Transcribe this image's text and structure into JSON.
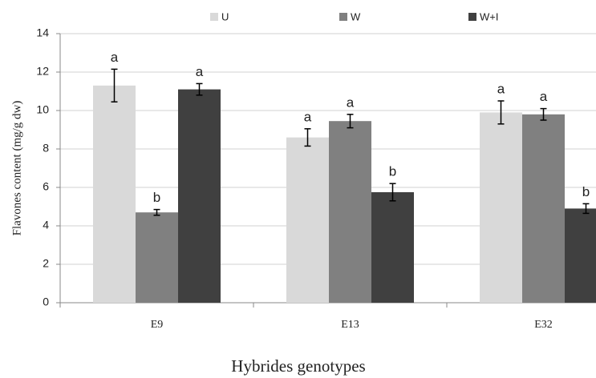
{
  "chart_data": {
    "type": "bar",
    "y_label": "Flavones content (mg/g dw)",
    "x_label": "Hybrides genotypes",
    "categories": [
      "E9",
      "E13",
      "E32"
    ],
    "series": [
      {
        "name": "U",
        "color": "#d9d9d9",
        "values": [
          11.3,
          8.6,
          9.9
        ],
        "errors": [
          0.85,
          0.45,
          0.6
        ],
        "letters": [
          "a",
          "a",
          "a"
        ]
      },
      {
        "name": "W",
        "color": "#808080",
        "values": [
          4.7,
          9.45,
          9.8
        ],
        "errors": [
          0.15,
          0.35,
          0.3
        ],
        "letters": [
          "b",
          "a",
          "a"
        ]
      },
      {
        "name": "W+I",
        "color": "#404040",
        "values": [
          11.1,
          5.75,
          4.9
        ],
        "errors": [
          0.3,
          0.45,
          0.25
        ],
        "letters": [
          "a",
          "b",
          "b"
        ]
      }
    ],
    "ylim": [
      0,
      14
    ],
    "yticks": [
      0,
      2,
      4,
      6,
      8,
      10,
      12,
      14
    ],
    "grid": true,
    "legend": "top"
  }
}
